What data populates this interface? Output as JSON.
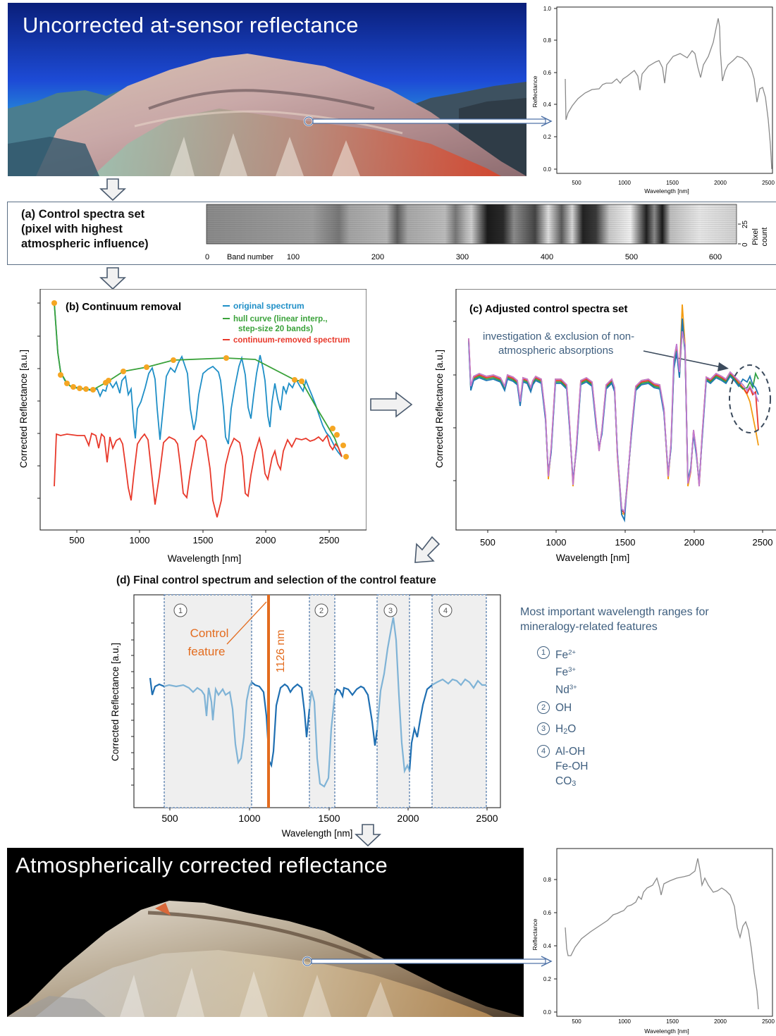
{
  "photo_top": {
    "title": "Uncorrected at-sensor reflectance"
  },
  "photo_bottom": {
    "title": "Atmospherically corrected reflectance"
  },
  "spectrum_top": {
    "ylabel": "Reflectance",
    "xlabel": "Wavelength [nm]",
    "yticks": [
      "0.0",
      "0.2",
      "0.4",
      "0.6",
      "0.8",
      "1.0"
    ],
    "xticks": [
      "500",
      "1000",
      "1500",
      "2000",
      "2500"
    ]
  },
  "spectrum_bottom": {
    "ylabel": "Reflectance",
    "xlabel": "Wavelength [nm]",
    "yticks": [
      "0.0",
      "0.2",
      "0.4",
      "0.6",
      "0.8"
    ],
    "xticks": [
      "500",
      "1000",
      "1500",
      "2000",
      "2500"
    ]
  },
  "panel_a": {
    "title_line1": "(a) Control spectra set",
    "title_line2": "(pixel with highest",
    "title_line3": "atmospheric influence)",
    "xlabel": "Band number",
    "xticks": [
      "0",
      "100",
      "200",
      "300",
      "400",
      "500",
      "600"
    ],
    "ylabel_line1": "Pixel",
    "ylabel_line2": "count",
    "yticks": [
      "0",
      "25"
    ]
  },
  "panel_b": {
    "title": "(b) Continuum removal",
    "ylabel": "Corrected Reflectance [a.u.]",
    "xlabel": "Wavelength [nm]",
    "xticks": [
      "500",
      "1000",
      "1500",
      "2000",
      "2500"
    ],
    "legend": {
      "original": "original spectrum",
      "hull_line1": "hull curve (linear interp.,",
      "hull_line2": "step-size 20 bands)",
      "removed": "continuum-removed spectrum"
    },
    "colors": {
      "original": "#1f8fc7",
      "hull": "#3aa23a",
      "removed": "#e8392b",
      "points": "#f5a623"
    }
  },
  "panel_c": {
    "title": "(c) Adjusted control spectra set",
    "ylabel": "Corrected Reflectance [a.u.]",
    "xlabel": "Wavelength [nm]",
    "xticks": [
      "500",
      "1000",
      "1500",
      "2000",
      "2500"
    ],
    "annotation_line1": "investigation & exclusion of non-",
    "annotation_line2": "atmospheric absorptions"
  },
  "panel_d": {
    "title": "(d) Final control spectrum and selection of the control feature",
    "ylabel": "Corrected Reflectance [a.u.]",
    "xlabel": "Wavelength [nm]",
    "xticks": [
      "500",
      "1000",
      "1500",
      "2000",
      "2500"
    ],
    "control_label_line1": "Control",
    "control_label_line2": "feature",
    "control_wavelength": "1126 nm",
    "control_color": "#e36c1f",
    "range_markers": [
      "1",
      "2",
      "3",
      "4"
    ]
  },
  "ranges_legend": {
    "title_line1": "Most important wavelength ranges for",
    "title_line2": "mineralogy-related features",
    "items": [
      {
        "num": "1",
        "lines": [
          "Fe2+",
          "Fe3+",
          "Nd3+"
        ]
      },
      {
        "num": "2",
        "lines": [
          "OH"
        ]
      },
      {
        "num": "3",
        "lines": [
          "H2O"
        ]
      },
      {
        "num": "4",
        "lines": [
          "Al-OH",
          "Fe-OH",
          "CO3"
        ]
      }
    ]
  }
}
